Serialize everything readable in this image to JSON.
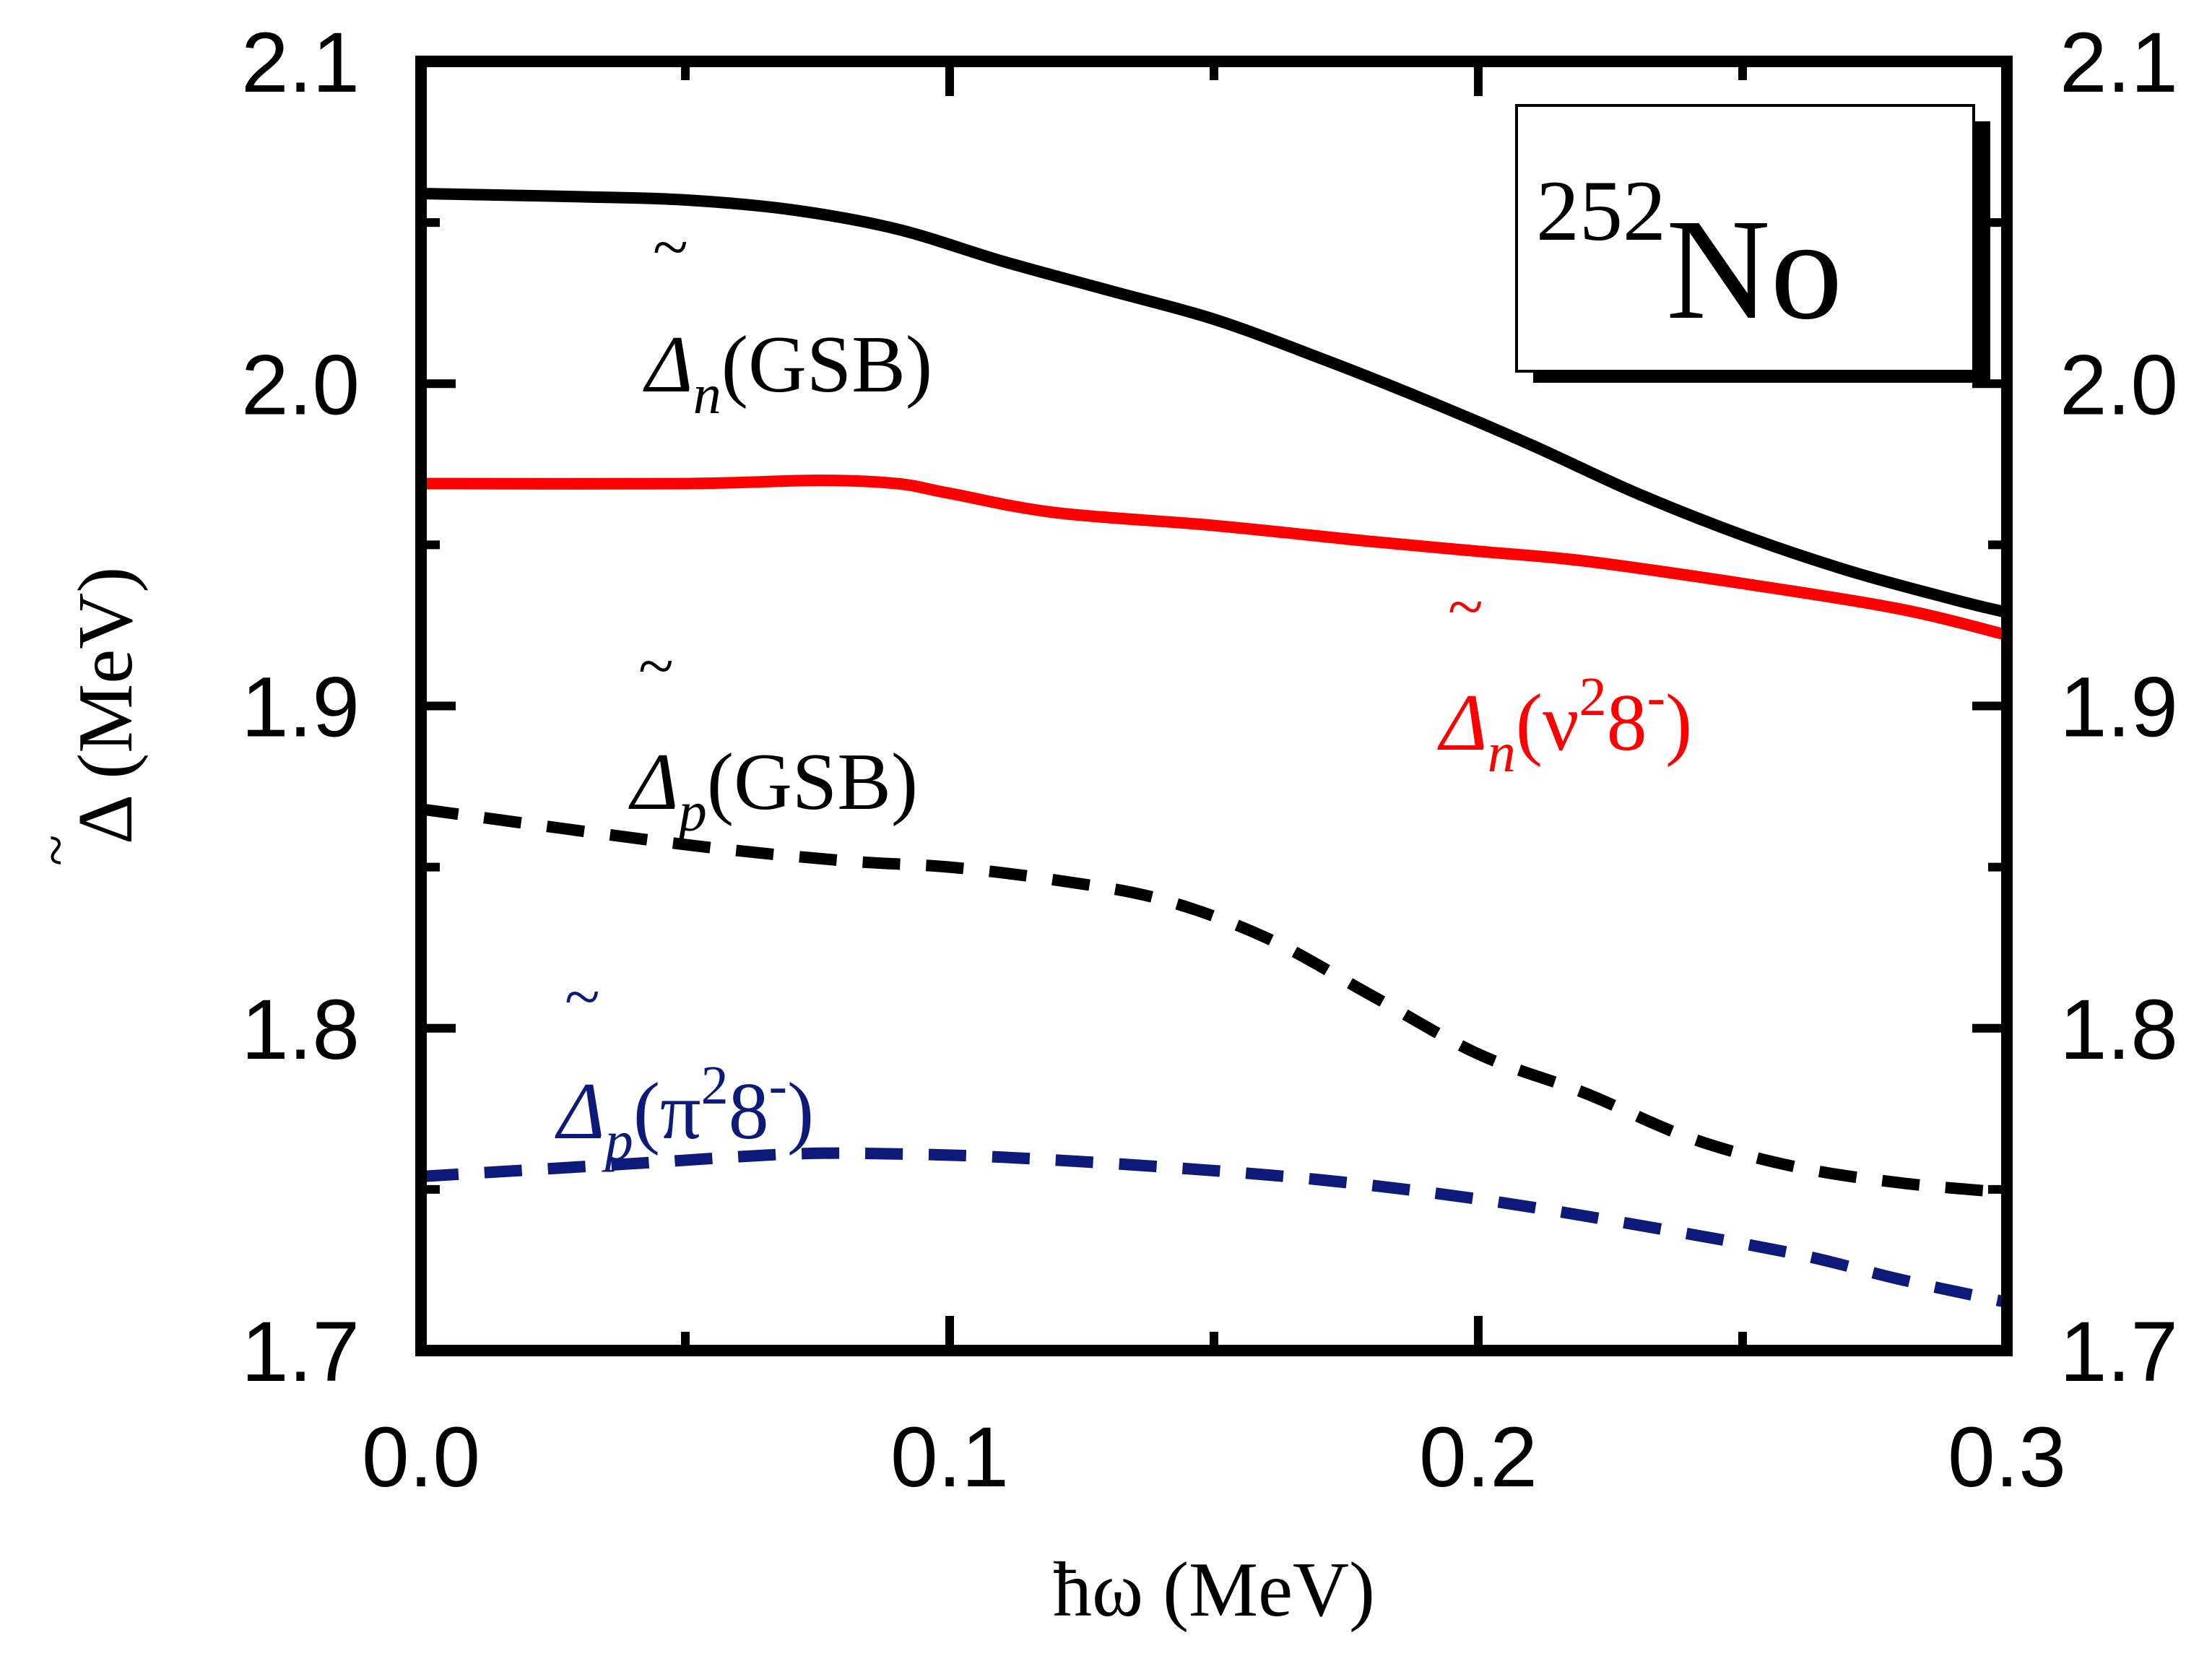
{
  "chart_data": {
    "type": "line",
    "title": "",
    "xlabel": "ħω (MeV)",
    "ylabel": "Δ (MeV)",
    "ylabel_accent": "~",
    "xlim": [
      0.0,
      0.3
    ],
    "ylim": [
      1.7,
      2.1
    ],
    "x_ticks": [
      "0.0",
      "0.1",
      "0.2",
      "0.3"
    ],
    "y_ticks": [
      "1.7",
      "1.8",
      "1.9",
      "2.0",
      "2.1"
    ],
    "x_tick_values": [
      0.0,
      0.1,
      0.2,
      0.3
    ],
    "y_tick_values": [
      1.7,
      1.8,
      1.9,
      2.0,
      2.1
    ],
    "grid": false,
    "nucleus": {
      "mass": "252",
      "symbol": "No"
    },
    "series": [
      {
        "name": "Δn(GSB)",
        "label_symbol": "Δ",
        "label_sub": "n",
        "label_rest": "(GSB)",
        "color": "#000000",
        "style": "solid",
        "x": [
          0.0,
          0.03,
          0.05,
          0.07,
          0.09,
          0.11,
          0.13,
          0.15,
          0.17,
          0.19,
          0.21,
          0.23,
          0.25,
          0.27,
          0.29,
          0.3
        ],
        "y": [
          2.059,
          2.058,
          2.057,
          2.054,
          2.048,
          2.038,
          2.029,
          2.02,
          2.008,
          1.995,
          1.981,
          1.966,
          1.953,
          1.942,
          1.933,
          1.929
        ]
      },
      {
        "name": "Δn(ν²8⁻)",
        "label_symbol": "Δ",
        "label_sub": "n",
        "label_open": "(ν",
        "label_sup": "2",
        "label_core": "8",
        "label_sup2": "-",
        "label_close": ")",
        "color": "#ff0000",
        "style": "solid",
        "x": [
          0.0,
          0.05,
          0.075,
          0.09,
          0.1,
          0.12,
          0.15,
          0.18,
          0.2,
          0.22,
          0.25,
          0.28,
          0.3
        ],
        "y": [
          1.969,
          1.969,
          1.97,
          1.969,
          1.966,
          1.96,
          1.956,
          1.951,
          1.948,
          1.945,
          1.938,
          1.93,
          1.922
        ]
      },
      {
        "name": "Δp(GSB)",
        "label_symbol": "Δ",
        "label_sub": "p",
        "label_rest": "(GSB)",
        "color": "#000000",
        "style": "dashed",
        "x": [
          0.0,
          0.05,
          0.08,
          0.1,
          0.12,
          0.14,
          0.16,
          0.18,
          0.2,
          0.22,
          0.24,
          0.26,
          0.28,
          0.3
        ],
        "y": [
          1.868,
          1.857,
          1.852,
          1.85,
          1.846,
          1.84,
          1.828,
          1.81,
          1.792,
          1.78,
          1.766,
          1.757,
          1.752,
          1.749
        ]
      },
      {
        "name": "Δp(π²8⁻)",
        "label_symbol": "Δ",
        "label_sub": "p",
        "label_open": "(π",
        "label_sup": "2",
        "label_core": "8",
        "label_sup2": "-",
        "label_close": ")",
        "color": "#0d1a7a",
        "style": "dashed",
        "x": [
          0.0,
          0.04,
          0.07,
          0.09,
          0.11,
          0.14,
          0.17,
          0.2,
          0.23,
          0.26,
          0.28,
          0.3
        ],
        "y": [
          1.754,
          1.758,
          1.761,
          1.761,
          1.76,
          1.757,
          1.753,
          1.747,
          1.739,
          1.73,
          1.722,
          1.715
        ]
      }
    ]
  }
}
